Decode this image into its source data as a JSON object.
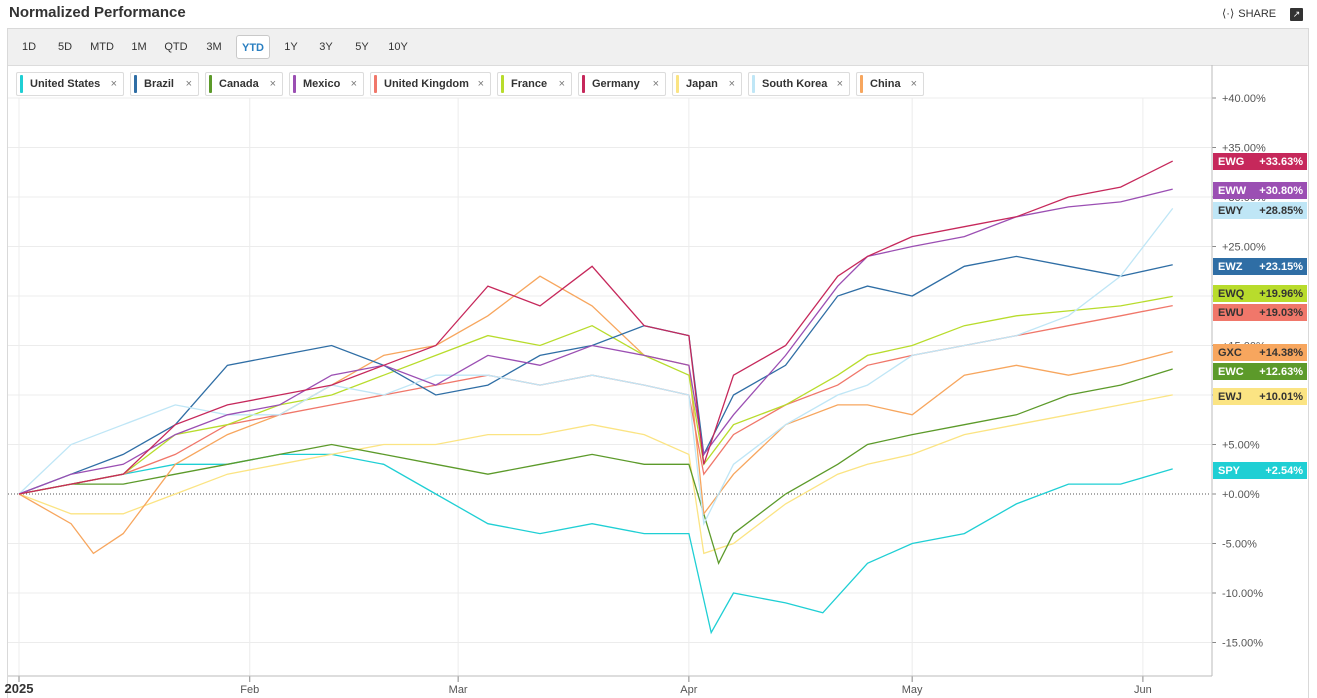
{
  "header": {
    "title": "Normalized Performance",
    "share_label": "SHARE"
  },
  "ranges": [
    "1D",
    "5D",
    "MTD",
    "1M",
    "QTD",
    "3M",
    "YTD",
    "1Y",
    "3Y",
    "5Y",
    "10Y"
  ],
  "active_range": "YTD",
  "legend": [
    {
      "label": "United States",
      "color": "#1fcfd4"
    },
    {
      "label": "Brazil",
      "color": "#2f6ea5"
    },
    {
      "label": "Canada",
      "color": "#5c9a2a"
    },
    {
      "label": "Mexico",
      "color": "#9b4fb3"
    },
    {
      "label": "United Kingdom",
      "color": "#f0776a"
    },
    {
      "label": "France",
      "color": "#b8dc2c"
    },
    {
      "label": "Germany",
      "color": "#c6285b"
    },
    {
      "label": "Japan",
      "color": "#fbe483"
    },
    {
      "label": "South Korea",
      "color": "#bfe6f6"
    },
    {
      "label": "China",
      "color": "#f7a65e"
    }
  ],
  "chart_data": {
    "type": "line",
    "ylim": [
      -18,
      43
    ],
    "y_ticks": [
      "+40.00%",
      "+35.00%",
      "+30.00%",
      "+25.00%",
      "+20.00%",
      "+15.00%",
      "+10.00%",
      "+5.00%",
      "+0.00%",
      "-5.00%",
      "-10.00%",
      "-15.00%"
    ],
    "y_tick_values": [
      40,
      35,
      30,
      25,
      20,
      15,
      10,
      5,
      0,
      -5,
      -10,
      -15
    ],
    "x_labels": [
      "2025",
      "Feb",
      "Mar",
      "Apr",
      "May",
      "Jun"
    ],
    "x_label_days": [
      0,
      31,
      59,
      90,
      120,
      151
    ],
    "x_range": [
      0,
      158
    ],
    "series": [
      {
        "name": "Germany",
        "symbol": "EWG",
        "end_label": "+33.63%",
        "color": "#c6285b",
        "text_color": "#ffffff",
        "points": [
          [
            0,
            0
          ],
          [
            7,
            1
          ],
          [
            14,
            2
          ],
          [
            21,
            7
          ],
          [
            28,
            9
          ],
          [
            35,
            10
          ],
          [
            42,
            11
          ],
          [
            49,
            13
          ],
          [
            56,
            15
          ],
          [
            63,
            21
          ],
          [
            70,
            19
          ],
          [
            77,
            23
          ],
          [
            84,
            17
          ],
          [
            90,
            16
          ],
          [
            92,
            3
          ],
          [
            96,
            12
          ],
          [
            103,
            15
          ],
          [
            110,
            22
          ],
          [
            114,
            24
          ],
          [
            120,
            26
          ],
          [
            127,
            27
          ],
          [
            134,
            28
          ],
          [
            141,
            30
          ],
          [
            148,
            31
          ],
          [
            155,
            33.63
          ]
        ]
      },
      {
        "name": "Mexico",
        "symbol": "EWW",
        "end_label": "+30.80%",
        "color": "#9b4fb3",
        "text_color": "#ffffff",
        "points": [
          [
            0,
            0
          ],
          [
            7,
            2
          ],
          [
            14,
            3
          ],
          [
            21,
            6
          ],
          [
            28,
            8
          ],
          [
            35,
            9
          ],
          [
            42,
            12
          ],
          [
            49,
            13
          ],
          [
            56,
            11
          ],
          [
            63,
            14
          ],
          [
            70,
            13
          ],
          [
            77,
            15
          ],
          [
            84,
            14
          ],
          [
            90,
            13
          ],
          [
            92,
            4
          ],
          [
            96,
            8
          ],
          [
            103,
            14
          ],
          [
            110,
            21
          ],
          [
            114,
            24
          ],
          [
            120,
            25
          ],
          [
            127,
            26
          ],
          [
            134,
            28
          ],
          [
            141,
            29
          ],
          [
            148,
            29.5
          ],
          [
            155,
            30.8
          ]
        ]
      },
      {
        "name": "South Korea",
        "symbol": "EWY",
        "end_label": "+28.85%",
        "color": "#bfe6f6",
        "text_color": "#333333",
        "points": [
          [
            0,
            0
          ],
          [
            7,
            5
          ],
          [
            14,
            7
          ],
          [
            21,
            9
          ],
          [
            28,
            8
          ],
          [
            35,
            8
          ],
          [
            42,
            11
          ],
          [
            49,
            10
          ],
          [
            56,
            12
          ],
          [
            63,
            12
          ],
          [
            70,
            11
          ],
          [
            77,
            12
          ],
          [
            84,
            11
          ],
          [
            90,
            10
          ],
          [
            92,
            -3
          ],
          [
            96,
            3
          ],
          [
            103,
            7
          ],
          [
            110,
            10
          ],
          [
            114,
            11
          ],
          [
            120,
            14
          ],
          [
            127,
            15
          ],
          [
            134,
            16
          ],
          [
            141,
            18
          ],
          [
            148,
            22
          ],
          [
            155,
            28.85
          ]
        ]
      },
      {
        "name": "Brazil",
        "symbol": "EWZ",
        "end_label": "+23.15%",
        "color": "#2f6ea5",
        "text_color": "#ffffff",
        "points": [
          [
            0,
            0
          ],
          [
            7,
            2
          ],
          [
            14,
            4
          ],
          [
            21,
            7
          ],
          [
            28,
            13
          ],
          [
            35,
            14
          ],
          [
            42,
            15
          ],
          [
            49,
            13
          ],
          [
            56,
            10
          ],
          [
            63,
            11
          ],
          [
            70,
            14
          ],
          [
            77,
            15
          ],
          [
            84,
            17
          ],
          [
            90,
            16
          ],
          [
            92,
            4
          ],
          [
            96,
            10
          ],
          [
            103,
            13
          ],
          [
            110,
            20
          ],
          [
            114,
            21
          ],
          [
            120,
            20
          ],
          [
            127,
            23
          ],
          [
            134,
            24
          ],
          [
            141,
            23
          ],
          [
            148,
            22
          ],
          [
            155,
            23.15
          ]
        ]
      },
      {
        "name": "France",
        "symbol": "EWQ",
        "end_label": "+19.96%",
        "color": "#b8dc2c",
        "text_color": "#333333",
        "points": [
          [
            0,
            0
          ],
          [
            7,
            1
          ],
          [
            14,
            2
          ],
          [
            21,
            6
          ],
          [
            28,
            7
          ],
          [
            35,
            9
          ],
          [
            42,
            10
          ],
          [
            49,
            12
          ],
          [
            56,
            14
          ],
          [
            63,
            16
          ],
          [
            70,
            15
          ],
          [
            77,
            17
          ],
          [
            84,
            14
          ],
          [
            90,
            12
          ],
          [
            92,
            3
          ],
          [
            96,
            7
          ],
          [
            103,
            9
          ],
          [
            110,
            12
          ],
          [
            114,
            14
          ],
          [
            120,
            15
          ],
          [
            127,
            17
          ],
          [
            134,
            18
          ],
          [
            141,
            18.5
          ],
          [
            148,
            19
          ],
          [
            155,
            19.96
          ]
        ]
      },
      {
        "name": "United Kingdom",
        "symbol": "EWU",
        "end_label": "+19.03%",
        "color": "#f0776a",
        "text_color": "#333333",
        "points": [
          [
            0,
            0
          ],
          [
            7,
            1
          ],
          [
            14,
            2
          ],
          [
            21,
            4
          ],
          [
            28,
            7
          ],
          [
            35,
            8
          ],
          [
            42,
            9
          ],
          [
            49,
            10
          ],
          [
            56,
            11
          ],
          [
            63,
            12
          ],
          [
            70,
            11
          ],
          [
            77,
            12
          ],
          [
            84,
            11
          ],
          [
            90,
            10
          ],
          [
            92,
            2
          ],
          [
            96,
            6
          ],
          [
            103,
            9
          ],
          [
            110,
            11
          ],
          [
            114,
            13
          ],
          [
            120,
            14
          ],
          [
            127,
            15
          ],
          [
            134,
            16
          ],
          [
            141,
            17
          ],
          [
            148,
            18
          ],
          [
            155,
            19.03
          ]
        ]
      },
      {
        "name": "China",
        "symbol": "GXC",
        "end_label": "+14.38%",
        "color": "#f7a65e",
        "text_color": "#333333",
        "points": [
          [
            0,
            0
          ],
          [
            7,
            -3
          ],
          [
            10,
            -6
          ],
          [
            14,
            -4
          ],
          [
            21,
            3
          ],
          [
            28,
            6
          ],
          [
            35,
            8
          ],
          [
            42,
            11
          ],
          [
            49,
            14
          ],
          [
            56,
            15
          ],
          [
            63,
            18
          ],
          [
            70,
            22
          ],
          [
            77,
            19
          ],
          [
            84,
            14
          ],
          [
            90,
            13
          ],
          [
            92,
            -2
          ],
          [
            96,
            2
          ],
          [
            103,
            7
          ],
          [
            110,
            9
          ],
          [
            114,
            9
          ],
          [
            120,
            8
          ],
          [
            127,
            12
          ],
          [
            134,
            13
          ],
          [
            141,
            12
          ],
          [
            148,
            13
          ],
          [
            155,
            14.38
          ]
        ]
      },
      {
        "name": "Canada",
        "symbol": "EWC",
        "end_label": "+12.63%",
        "color": "#5c9a2a",
        "text_color": "#ffffff",
        "points": [
          [
            0,
            0
          ],
          [
            7,
            1
          ],
          [
            14,
            1
          ],
          [
            21,
            2
          ],
          [
            28,
            3
          ],
          [
            35,
            4
          ],
          [
            42,
            5
          ],
          [
            49,
            4
          ],
          [
            56,
            3
          ],
          [
            63,
            2
          ],
          [
            70,
            3
          ],
          [
            77,
            4
          ],
          [
            84,
            3
          ],
          [
            90,
            3
          ],
          [
            94,
            -7
          ],
          [
            96,
            -4
          ],
          [
            103,
            0
          ],
          [
            110,
            3
          ],
          [
            114,
            5
          ],
          [
            120,
            6
          ],
          [
            127,
            7
          ],
          [
            134,
            8
          ],
          [
            141,
            10
          ],
          [
            148,
            11
          ],
          [
            155,
            12.63
          ]
        ]
      },
      {
        "name": "Japan",
        "symbol": "EWJ",
        "end_label": "+10.01%",
        "color": "#fbe483",
        "text_color": "#333333",
        "points": [
          [
            0,
            0
          ],
          [
            7,
            -2
          ],
          [
            14,
            -2
          ],
          [
            21,
            0
          ],
          [
            28,
            2
          ],
          [
            35,
            3
          ],
          [
            42,
            4
          ],
          [
            49,
            5
          ],
          [
            56,
            5
          ],
          [
            63,
            6
          ],
          [
            70,
            6
          ],
          [
            77,
            7
          ],
          [
            84,
            6
          ],
          [
            90,
            4
          ],
          [
            92,
            -6
          ],
          [
            96,
            -5
          ],
          [
            103,
            -1
          ],
          [
            110,
            2
          ],
          [
            114,
            3
          ],
          [
            120,
            4
          ],
          [
            127,
            6
          ],
          [
            134,
            7
          ],
          [
            141,
            8
          ],
          [
            148,
            9
          ],
          [
            155,
            10.01
          ]
        ]
      },
      {
        "name": "United States",
        "symbol": "SPY",
        "end_label": "+2.54%",
        "color": "#1fcfd4",
        "text_color": "#ffffff",
        "points": [
          [
            0,
            0
          ],
          [
            7,
            1
          ],
          [
            14,
            2
          ],
          [
            21,
            3
          ],
          [
            28,
            3
          ],
          [
            35,
            4
          ],
          [
            42,
            4
          ],
          [
            49,
            3
          ],
          [
            56,
            0
          ],
          [
            63,
            -3
          ],
          [
            70,
            -4
          ],
          [
            77,
            -3
          ],
          [
            84,
            -4
          ],
          [
            90,
            -4
          ],
          [
            93,
            -14
          ],
          [
            96,
            -10
          ],
          [
            103,
            -11
          ],
          [
            108,
            -12
          ],
          [
            114,
            -7
          ],
          [
            120,
            -5
          ],
          [
            127,
            -4
          ],
          [
            134,
            -1
          ],
          [
            141,
            1
          ],
          [
            148,
            1
          ],
          [
            155,
            2.54
          ]
        ]
      }
    ]
  }
}
